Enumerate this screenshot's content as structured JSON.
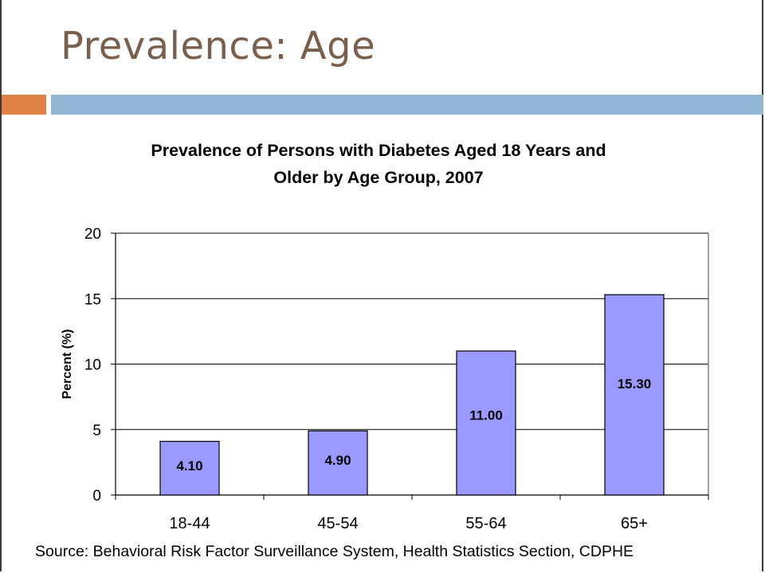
{
  "slide": {
    "title": "Prevalence: Age",
    "accent_color": "#dd8144",
    "rule_color": "#93b6d4"
  },
  "chart_data": {
    "type": "bar",
    "title_lines": [
      "Prevalence of Persons with Diabetes Aged 18 Years and",
      "Older by Age Group, 2007"
    ],
    "categories": [
      "18-44",
      "45-54",
      "55-64",
      "65+"
    ],
    "values": [
      4.1,
      4.9,
      11.0,
      15.3
    ],
    "data_labels": [
      "4.10",
      "4.90",
      "11.00",
      "15.30"
    ],
    "xlabel": "",
    "ylabel": "Percent (%)",
    "ylim": [
      0,
      20
    ],
    "yticks": [
      0,
      5,
      10,
      15,
      20
    ],
    "grid": true,
    "legend": "none",
    "bar_color": "#9999ff",
    "source": "Source: Behavioral Risk Factor Surveillance System, Health Statistics Section, CDPHE"
  }
}
